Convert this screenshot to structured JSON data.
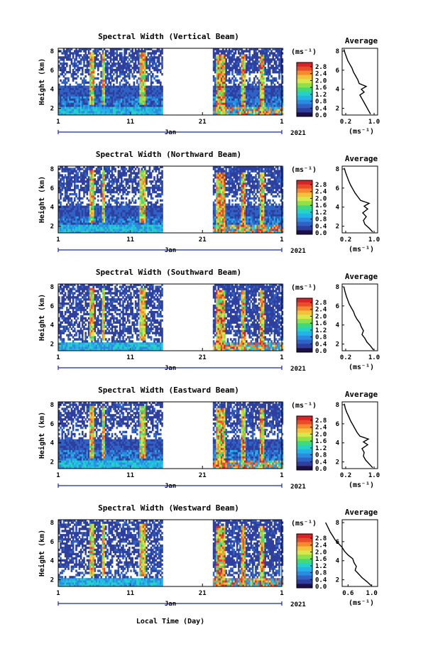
{
  "xlabel_bottom": "Local Time (Day)",
  "chart_data": [
    {
      "type": "heatmap",
      "title": "Spectral Width (Vertical Beam)",
      "ylabel": "Height (km)",
      "yticks": [
        "2",
        "4",
        "6",
        "8"
      ],
      "ylim": [
        1.3,
        8.3
      ],
      "xticks": [
        "1",
        "11",
        "21",
        "1"
      ],
      "xlim": [
        1,
        32
      ],
      "x_month_label": "Jan",
      "x_year_label": "2021",
      "colorbar_unit": "(ms⁻¹)",
      "colorbar_ticks": [
        "2.8",
        "2.4",
        "2.0",
        "1.6",
        "1.2",
        "0.8",
        "0.4",
        "0.0"
      ],
      "gap_days": [
        15.3,
        22.3
      ],
      "layer_heights_km": {
        "mid_lower": 3.2,
        "mid_upper": 4.3,
        "upper_base": 5.6
      },
      "average": {
        "title": "Average",
        "xlabel": "(ms⁻¹)",
        "xticks": [
          "0.2",
          "1.0"
        ],
        "yticks": [
          "2",
          "4",
          "6",
          "8"
        ],
        "points": [
          [
            0.9,
            1.4
          ],
          [
            0.84,
            1.8
          ],
          [
            0.78,
            2.2
          ],
          [
            0.72,
            2.6
          ],
          [
            0.66,
            3.0
          ],
          [
            0.6,
            3.4
          ],
          [
            0.72,
            3.7
          ],
          [
            0.64,
            4.0
          ],
          [
            0.78,
            4.3
          ],
          [
            0.58,
            4.6
          ],
          [
            0.54,
            5.0
          ],
          [
            0.48,
            5.4
          ],
          [
            0.42,
            5.8
          ],
          [
            0.38,
            6.2
          ],
          [
            0.32,
            6.6
          ],
          [
            0.26,
            7.0
          ],
          [
            0.22,
            7.4
          ],
          [
            0.18,
            7.8
          ],
          [
            0.15,
            8.2
          ]
        ]
      }
    },
    {
      "type": "heatmap",
      "title": "Spectral Width (Northward Beam)",
      "ylabel": "Height (km)",
      "yticks": [
        "2",
        "4",
        "6",
        "8"
      ],
      "ylim": [
        1.3,
        8.3
      ],
      "xticks": [
        "1",
        "11",
        "21",
        "1"
      ],
      "xlim": [
        1,
        32
      ],
      "x_month_label": "Jan",
      "x_year_label": "2021",
      "colorbar_unit": "(ms⁻¹)",
      "colorbar_ticks": [
        "2.8",
        "2.4",
        "2.0",
        "1.6",
        "1.2",
        "0.8",
        "0.4",
        "0.0"
      ],
      "gap_days": [
        15.3,
        22.3
      ],
      "layer_heights_km": {
        "mid_lower": 3.0,
        "mid_upper": 4.0,
        "upper_base": 5.4
      },
      "average": {
        "title": "Average",
        "xlabel": "(ms⁻¹)",
        "xticks": [
          "0.2",
          "1.0"
        ],
        "yticks": [
          "2",
          "4",
          "6",
          "8"
        ],
        "points": [
          [
            0.96,
            1.4
          ],
          [
            0.86,
            1.8
          ],
          [
            0.74,
            2.2
          ],
          [
            0.7,
            2.6
          ],
          [
            0.78,
            3.0
          ],
          [
            0.68,
            3.4
          ],
          [
            0.82,
            3.8
          ],
          [
            0.72,
            4.1
          ],
          [
            0.86,
            4.4
          ],
          [
            0.62,
            4.7
          ],
          [
            0.54,
            5.1
          ],
          [
            0.46,
            5.5
          ],
          [
            0.4,
            5.9
          ],
          [
            0.34,
            6.3
          ],
          [
            0.28,
            6.8
          ],
          [
            0.24,
            7.2
          ],
          [
            0.2,
            7.6
          ],
          [
            0.16,
            8.1
          ]
        ]
      }
    },
    {
      "type": "heatmap",
      "title": "Spectral Width (Southward Beam)",
      "ylabel": "Height (km)",
      "yticks": [
        "2",
        "4",
        "6",
        "8"
      ],
      "ylim": [
        1.3,
        8.3
      ],
      "xticks": [
        "1",
        "11",
        "21",
        "1"
      ],
      "xlim": [
        1,
        32
      ],
      "x_month_label": "Jan",
      "x_year_label": "2021",
      "colorbar_unit": "(ms⁻¹)",
      "colorbar_ticks": [
        "2.8",
        "2.4",
        "2.0",
        "1.6",
        "1.2",
        "0.8",
        "0.4",
        "0.0"
      ],
      "gap_days": [
        15.3,
        22.3
      ],
      "layer_heights_km": {
        "mid_lower": 2.0,
        "mid_upper": 2.3,
        "upper_base": 3.0
      },
      "average": {
        "title": "Average",
        "xlabel": "(ms⁻¹)",
        "xticks": [
          "0.2",
          "1.0"
        ],
        "yticks": [
          "2",
          "4",
          "6",
          "8"
        ],
        "points": [
          [
            0.98,
            1.4
          ],
          [
            0.9,
            1.8
          ],
          [
            0.8,
            2.2
          ],
          [
            0.74,
            2.6
          ],
          [
            0.66,
            3.0
          ],
          [
            0.7,
            3.4
          ],
          [
            0.64,
            3.8
          ],
          [
            0.6,
            4.2
          ],
          [
            0.52,
            4.6
          ],
          [
            0.46,
            5.0
          ],
          [
            0.42,
            5.4
          ],
          [
            0.36,
            5.8
          ],
          [
            0.3,
            6.2
          ],
          [
            0.26,
            6.6
          ],
          [
            0.22,
            7.0
          ],
          [
            0.18,
            7.5
          ],
          [
            0.15,
            8.0
          ]
        ]
      }
    },
    {
      "type": "heatmap",
      "title": "Spectral Width (Eastward Beam)",
      "ylabel": "Height (km)",
      "yticks": [
        "2",
        "4",
        "6",
        "8"
      ],
      "ylim": [
        1.3,
        8.3
      ],
      "xticks": [
        "1",
        "11",
        "21",
        "1"
      ],
      "xlim": [
        1,
        32
      ],
      "x_month_label": "Jan",
      "x_year_label": "2021",
      "colorbar_unit": "(ms⁻¹)",
      "colorbar_ticks": [
        "2.8",
        "2.4",
        "2.0",
        "1.6",
        "1.2",
        "0.8",
        "0.4",
        "0.0"
      ],
      "gap_days": [
        15.3,
        22.3
      ],
      "layer_heights_km": {
        "mid_lower": 3.1,
        "mid_upper": 4.2,
        "upper_base": 5.5
      },
      "average": {
        "title": "Average",
        "xlabel": "(ms⁻¹)",
        "xticks": [
          "0.2",
          "1.0"
        ],
        "yticks": [
          "2",
          "4",
          "6",
          "8"
        ],
        "points": [
          [
            0.96,
            1.4
          ],
          [
            0.86,
            1.8
          ],
          [
            0.76,
            2.2
          ],
          [
            0.7,
            2.6
          ],
          [
            0.72,
            3.0
          ],
          [
            0.66,
            3.4
          ],
          [
            0.82,
            3.8
          ],
          [
            0.7,
            4.1
          ],
          [
            0.84,
            4.4
          ],
          [
            0.6,
            4.7
          ],
          [
            0.52,
            5.1
          ],
          [
            0.46,
            5.5
          ],
          [
            0.4,
            5.9
          ],
          [
            0.34,
            6.3
          ],
          [
            0.28,
            6.8
          ],
          [
            0.23,
            7.2
          ],
          [
            0.19,
            7.6
          ],
          [
            0.16,
            8.1
          ]
        ]
      }
    },
    {
      "type": "heatmap",
      "title": "Spectral Width (Westward Beam)",
      "ylabel": "Height (km)",
      "yticks": [
        "2",
        "4",
        "6",
        "8"
      ],
      "ylim": [
        1.3,
        8.3
      ],
      "xticks": [
        "1",
        "11",
        "21",
        "1"
      ],
      "xlim": [
        1,
        32
      ],
      "x_month_label": "Jan",
      "x_year_label": "2021",
      "colorbar_unit": "(ms⁻¹)",
      "colorbar_ticks": [
        "2.8",
        "2.4",
        "2.0",
        "1.6",
        "1.2",
        "0.8",
        "0.4",
        "0.0"
      ],
      "gap_days": [
        15.3,
        22.3
      ],
      "layer_heights_km": {
        "mid_lower": 2.1,
        "mid_upper": 2.4,
        "upper_base": 3.2
      },
      "average": {
        "title": "Average",
        "xlabel": "(ms⁻¹)",
        "xticks": [
          "0.6",
          "1.0"
        ],
        "yticks": [
          "2",
          "4",
          "6",
          "8"
        ],
        "points": [
          [
            0.99,
            1.4
          ],
          [
            0.92,
            1.8
          ],
          [
            0.84,
            2.2
          ],
          [
            0.78,
            2.6
          ],
          [
            0.72,
            3.0
          ],
          [
            0.74,
            3.4
          ],
          [
            0.7,
            3.8
          ],
          [
            0.68,
            4.2
          ],
          [
            0.6,
            4.6
          ],
          [
            0.54,
            5.0
          ],
          [
            0.5,
            5.4
          ],
          [
            0.44,
            5.8
          ],
          [
            0.38,
            6.2
          ],
          [
            0.34,
            6.6
          ],
          [
            0.3,
            7.0
          ],
          [
            0.26,
            7.5
          ],
          [
            0.22,
            8.0
          ]
        ]
      }
    }
  ]
}
